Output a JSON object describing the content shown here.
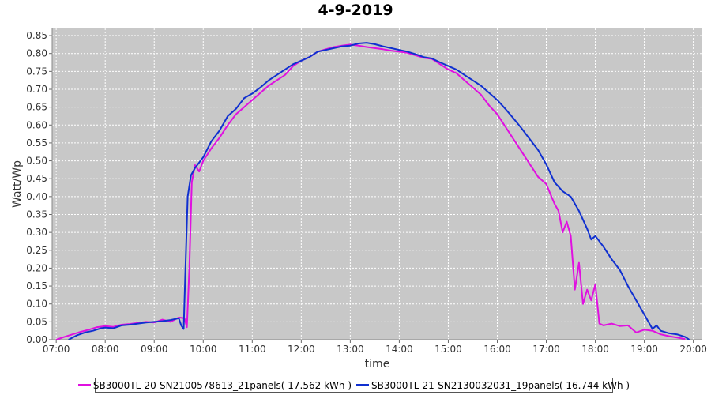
{
  "chart_data": {
    "type": "line",
    "title": "4-9-2019",
    "xlabel": "time",
    "ylabel": "Watt/Wp",
    "xlim": [
      "06:55",
      "20:11"
    ],
    "ylim": [
      0,
      0.87
    ],
    "grid": true,
    "legend_position": "bottom",
    "x_ticks": [
      "07:00",
      "08:00",
      "09:00",
      "10:00",
      "11:00",
      "12:00",
      "13:00",
      "14:00",
      "15:00",
      "16:00",
      "17:00",
      "18:00",
      "19:00",
      "20:00"
    ],
    "y_ticks": [
      "0.00",
      "0.05",
      "0.10",
      "0.15",
      "0.20",
      "0.25",
      "0.30",
      "0.35",
      "0.40",
      "0.45",
      "0.50",
      "0.55",
      "0.60",
      "0.65",
      "0.70",
      "0.75",
      "0.80",
      "0.85"
    ],
    "series": [
      {
        "name": "SB3000TL-20-SN2100578613_21panels( 17.562 kWh )",
        "color": "#e010e0",
        "points": [
          [
            "07:00",
            0.0
          ],
          [
            "07:10",
            0.008
          ],
          [
            "07:20",
            0.015
          ],
          [
            "07:30",
            0.022
          ],
          [
            "07:40",
            0.028
          ],
          [
            "07:50",
            0.035
          ],
          [
            "08:00",
            0.038
          ],
          [
            "08:10",
            0.036
          ],
          [
            "08:20",
            0.042
          ],
          [
            "08:30",
            0.044
          ],
          [
            "08:40",
            0.047
          ],
          [
            "08:50",
            0.05
          ],
          [
            "09:00",
            0.048
          ],
          [
            "09:10",
            0.056
          ],
          [
            "09:20",
            0.05
          ],
          [
            "09:30",
            0.062
          ],
          [
            "09:37",
            0.06
          ],
          [
            "09:40",
            0.035
          ],
          [
            "09:43",
            0.2
          ],
          [
            "09:46",
            0.44
          ],
          [
            "09:50",
            0.488
          ],
          [
            "09:55",
            0.47
          ],
          [
            "10:00",
            0.5
          ],
          [
            "10:10",
            0.535
          ],
          [
            "10:20",
            0.565
          ],
          [
            "10:30",
            0.6
          ],
          [
            "10:40",
            0.63
          ],
          [
            "10:50",
            0.65
          ],
          [
            "11:00",
            0.67
          ],
          [
            "11:10",
            0.69
          ],
          [
            "11:20",
            0.71
          ],
          [
            "11:30",
            0.725
          ],
          [
            "11:40",
            0.74
          ],
          [
            "11:50",
            0.765
          ],
          [
            "12:00",
            0.78
          ],
          [
            "12:10",
            0.79
          ],
          [
            "12:20",
            0.805
          ],
          [
            "12:30",
            0.812
          ],
          [
            "12:40",
            0.818
          ],
          [
            "12:50",
            0.822
          ],
          [
            "13:00",
            0.825
          ],
          [
            "13:10",
            0.822
          ],
          [
            "13:20",
            0.818
          ],
          [
            "13:30",
            0.815
          ],
          [
            "13:40",
            0.812
          ],
          [
            "13:50",
            0.808
          ],
          [
            "14:00",
            0.805
          ],
          [
            "14:10",
            0.802
          ],
          [
            "14:20",
            0.795
          ],
          [
            "14:30",
            0.788
          ],
          [
            "14:40",
            0.785
          ],
          [
            "14:50",
            0.77
          ],
          [
            "15:00",
            0.755
          ],
          [
            "15:10",
            0.745
          ],
          [
            "15:20",
            0.725
          ],
          [
            "15:30",
            0.705
          ],
          [
            "15:40",
            0.685
          ],
          [
            "15:50",
            0.655
          ],
          [
            "16:00",
            0.63
          ],
          [
            "16:10",
            0.595
          ],
          [
            "16:20",
            0.56
          ],
          [
            "16:30",
            0.525
          ],
          [
            "16:40",
            0.49
          ],
          [
            "16:50",
            0.455
          ],
          [
            "17:00",
            0.435
          ],
          [
            "17:10",
            0.38
          ],
          [
            "17:15",
            0.36
          ],
          [
            "17:20",
            0.3
          ],
          [
            "17:25",
            0.33
          ],
          [
            "17:30",
            0.29
          ],
          [
            "17:35",
            0.14
          ],
          [
            "17:40",
            0.215
          ],
          [
            "17:45",
            0.1
          ],
          [
            "17:50",
            0.14
          ],
          [
            "17:55",
            0.11
          ],
          [
            "18:00",
            0.155
          ],
          [
            "18:05",
            0.045
          ],
          [
            "18:10",
            0.04
          ],
          [
            "18:20",
            0.045
          ],
          [
            "18:30",
            0.038
          ],
          [
            "18:40",
            0.04
          ],
          [
            "18:50",
            0.02
          ],
          [
            "19:00",
            0.028
          ],
          [
            "19:10",
            0.025
          ],
          [
            "19:20",
            0.015
          ],
          [
            "19:30",
            0.01
          ],
          [
            "19:40",
            0.006
          ],
          [
            "19:50",
            0.002
          ]
        ]
      },
      {
        "name": "SB3000TL-21-SN2130032031_19panels( 16.744 kWh )",
        "color": "#1030d0",
        "points": [
          [
            "07:15",
            0.0
          ],
          [
            "07:25",
            0.012
          ],
          [
            "07:35",
            0.02
          ],
          [
            "07:45",
            0.025
          ],
          [
            "07:55",
            0.032
          ],
          [
            "08:00",
            0.034
          ],
          [
            "08:10",
            0.032
          ],
          [
            "08:20",
            0.04
          ],
          [
            "08:30",
            0.042
          ],
          [
            "08:40",
            0.045
          ],
          [
            "08:50",
            0.048
          ],
          [
            "09:00",
            0.05
          ],
          [
            "09:10",
            0.052
          ],
          [
            "09:20",
            0.055
          ],
          [
            "09:30",
            0.06
          ],
          [
            "09:33",
            0.04
          ],
          [
            "09:36",
            0.03
          ],
          [
            "09:38",
            0.18
          ],
          [
            "09:41",
            0.4
          ],
          [
            "09:45",
            0.46
          ],
          [
            "09:50",
            0.48
          ],
          [
            "10:00",
            0.51
          ],
          [
            "10:10",
            0.555
          ],
          [
            "10:20",
            0.585
          ],
          [
            "10:30",
            0.625
          ],
          [
            "10:40",
            0.645
          ],
          [
            "10:50",
            0.675
          ],
          [
            "11:00",
            0.688
          ],
          [
            "11:10",
            0.705
          ],
          [
            "11:20",
            0.725
          ],
          [
            "11:30",
            0.74
          ],
          [
            "11:40",
            0.755
          ],
          [
            "11:50",
            0.77
          ],
          [
            "12:00",
            0.78
          ],
          [
            "12:10",
            0.79
          ],
          [
            "12:20",
            0.805
          ],
          [
            "12:30",
            0.81
          ],
          [
            "12:40",
            0.815
          ],
          [
            "12:50",
            0.82
          ],
          [
            "13:00",
            0.822
          ],
          [
            "13:10",
            0.828
          ],
          [
            "13:20",
            0.83
          ],
          [
            "13:30",
            0.826
          ],
          [
            "13:40",
            0.82
          ],
          [
            "13:50",
            0.815
          ],
          [
            "14:00",
            0.81
          ],
          [
            "14:10",
            0.805
          ],
          [
            "14:20",
            0.798
          ],
          [
            "14:30",
            0.79
          ],
          [
            "14:40",
            0.786
          ],
          [
            "14:50",
            0.775
          ],
          [
            "15:00",
            0.765
          ],
          [
            "15:10",
            0.755
          ],
          [
            "15:20",
            0.74
          ],
          [
            "15:30",
            0.725
          ],
          [
            "15:40",
            0.71
          ],
          [
            "15:50",
            0.69
          ],
          [
            "16:00",
            0.67
          ],
          [
            "16:10",
            0.645
          ],
          [
            "16:20",
            0.618
          ],
          [
            "16:30",
            0.59
          ],
          [
            "16:40",
            0.56
          ],
          [
            "16:50",
            0.53
          ],
          [
            "17:00",
            0.49
          ],
          [
            "17:10",
            0.44
          ],
          [
            "17:20",
            0.415
          ],
          [
            "17:30",
            0.4
          ],
          [
            "17:40",
            0.36
          ],
          [
            "17:50",
            0.31
          ],
          [
            "17:55",
            0.28
          ],
          [
            "18:00",
            0.29
          ],
          [
            "18:10",
            0.26
          ],
          [
            "18:20",
            0.225
          ],
          [
            "18:30",
            0.195
          ],
          [
            "18:40",
            0.15
          ],
          [
            "18:50",
            0.11
          ],
          [
            "19:00",
            0.07
          ],
          [
            "19:10",
            0.03
          ],
          [
            "19:15",
            0.04
          ],
          [
            "19:20",
            0.025
          ],
          [
            "19:30",
            0.018
          ],
          [
            "19:40",
            0.015
          ],
          [
            "19:50",
            0.008
          ],
          [
            "19:55",
            0.0
          ]
        ]
      }
    ]
  }
}
